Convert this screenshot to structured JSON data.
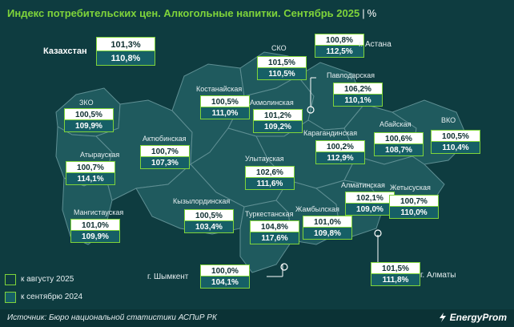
{
  "header": {
    "title": "Индекс потребительских цен. Алкогольные напитки. Сентябрь 2025",
    "separator": "|",
    "unit": "%"
  },
  "colors": {
    "background": "#0e3c40",
    "accent": "#7fd43a",
    "region_fill": "#1f5a5e",
    "region_border": "#5f8f93",
    "box_top": "#ffffff",
    "box_bottom": "#165f66"
  },
  "kazakhstan": {
    "label": "Казахстан",
    "aug": "101,3%",
    "sep": "110,8%"
  },
  "regions": {
    "zko": {
      "name": "ЗКО",
      "aug": "100,5%",
      "sep": "109,9%"
    },
    "atyrau": {
      "name": "Атырауская",
      "aug": "100,7%",
      "sep": "114,1%"
    },
    "mangistau": {
      "name": "Мангистауская",
      "aug": "101,0%",
      "sep": "109,9%"
    },
    "aktobe": {
      "name": "Актюбинская",
      "aug": "100,7%",
      "sep": "107,3%"
    },
    "kostanay": {
      "name": "Костанайская",
      "aug": "100,5%",
      "sep": "111,0%"
    },
    "sko": {
      "name": "СКО",
      "aug": "101,5%",
      "sep": "110,5%"
    },
    "astana": {
      "name": "г. Астана",
      "aug": "100,8%",
      "sep": "112,5%"
    },
    "akmola": {
      "name": "Акмолинская",
      "aug": "101,2%",
      "sep": "109,2%"
    },
    "pavlodar": {
      "name": "Павлодарская",
      "aug": "106,2%",
      "sep": "110,1%"
    },
    "karaganda": {
      "name": "Карагандинская",
      "aug": "100,2%",
      "sep": "112,9%"
    },
    "abay": {
      "name": "Абайская",
      "aug": "100,6%",
      "sep": "108,7%"
    },
    "vko": {
      "name": "ВКО",
      "aug": "100,5%",
      "sep": "110,4%"
    },
    "ulytau": {
      "name": "Улытауская",
      "aug": "102,6%",
      "sep": "111,6%"
    },
    "kyzylorda": {
      "name": "Кызылординская",
      "aug": "100,5%",
      "sep": "103,4%"
    },
    "turkestan": {
      "name": "Туркестанская",
      "aug": "104,8%",
      "sep": "117,6%"
    },
    "zhambyl": {
      "name": "Жамбылская",
      "aug": "101,0%",
      "sep": "109,8%"
    },
    "almaty_region": {
      "name": "Алматинская",
      "aug": "102,1%",
      "sep": "109,0%"
    },
    "zhetysu": {
      "name": "Жетысуская",
      "aug": "100,7%",
      "sep": "110,0%"
    },
    "almaty_city": {
      "name": "г. Алматы",
      "aug": "101,5%",
      "sep": "111,8%"
    },
    "shymkent": {
      "name": "г. Шымкент",
      "aug": "100,0%",
      "sep": "104,1%"
    }
  },
  "legend": {
    "aug": "к августу 2025",
    "sep": "к сентябрю 2024"
  },
  "footer": {
    "source": "Источник: Бюро национальной статистики АСПиР РК",
    "brand": "EnergyProm"
  }
}
